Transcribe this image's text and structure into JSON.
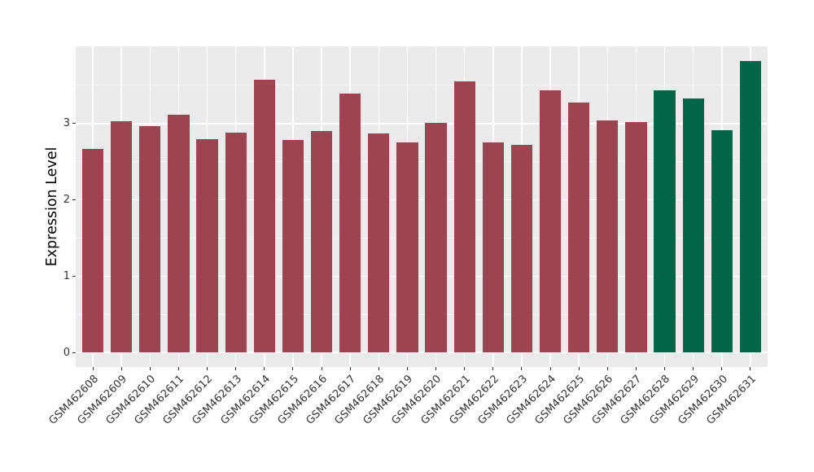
{
  "chart_data": {
    "type": "bar",
    "title": "",
    "xlabel": "",
    "ylabel": "Expression Level",
    "yticks": [
      0,
      1,
      2,
      3
    ],
    "ylim": [
      0,
      4.0
    ],
    "grid": "major and minor horizontal white lines, vertical white line at each category center",
    "legend_position": "none",
    "panel_background": "#EBEBEB",
    "grid_color": "#FFFFFF",
    "axis_text_color": "#333333",
    "group_colors": {
      "red": "#9C4451",
      "green": "#006647"
    },
    "categories": [
      "GSM462608",
      "GSM462609",
      "GSM462610",
      "GSM462611",
      "GSM462612",
      "GSM462613",
      "GSM462614",
      "GSM462615",
      "GSM462616",
      "GSM462617",
      "GSM462618",
      "GSM462619",
      "GSM462620",
      "GSM462621",
      "GSM462622",
      "GSM462623",
      "GSM462624",
      "GSM462625",
      "GSM462626",
      "GSM462627",
      "GSM462628",
      "GSM462629",
      "GSM462630",
      "GSM462631"
    ],
    "bars": [
      {
        "label": "GSM462608",
        "value": 2.67,
        "group": "red"
      },
      {
        "label": "GSM462609",
        "value": 3.03,
        "group": "red"
      },
      {
        "label": "GSM462610",
        "value": 2.97,
        "group": "red"
      },
      {
        "label": "GSM462611",
        "value": 3.11,
        "group": "red"
      },
      {
        "label": "GSM462612",
        "value": 2.8,
        "group": "red"
      },
      {
        "label": "GSM462613",
        "value": 2.88,
        "group": "red"
      },
      {
        "label": "GSM462614",
        "value": 3.57,
        "group": "red"
      },
      {
        "label": "GSM462615",
        "value": 2.78,
        "group": "red"
      },
      {
        "label": "GSM462616",
        "value": 2.9,
        "group": "red"
      },
      {
        "label": "GSM462617",
        "value": 3.39,
        "group": "red"
      },
      {
        "label": "GSM462618",
        "value": 2.87,
        "group": "red"
      },
      {
        "label": "GSM462619",
        "value": 2.75,
        "group": "red"
      },
      {
        "label": "GSM462620",
        "value": 3.01,
        "group": "red"
      },
      {
        "label": "GSM462621",
        "value": 3.55,
        "group": "red"
      },
      {
        "label": "GSM462622",
        "value": 2.75,
        "group": "red"
      },
      {
        "label": "GSM462623",
        "value": 2.72,
        "group": "red"
      },
      {
        "label": "GSM462624",
        "value": 3.43,
        "group": "red"
      },
      {
        "label": "GSM462625",
        "value": 3.27,
        "group": "red"
      },
      {
        "label": "GSM462626",
        "value": 3.04,
        "group": "red"
      },
      {
        "label": "GSM462627",
        "value": 3.02,
        "group": "red"
      },
      {
        "label": "GSM462628",
        "value": 3.44,
        "group": "green"
      },
      {
        "label": "GSM462629",
        "value": 3.33,
        "group": "green"
      },
      {
        "label": "GSM462630",
        "value": 2.91,
        "group": "green"
      },
      {
        "label": "GSM462631",
        "value": 3.82,
        "group": "green"
      }
    ]
  }
}
